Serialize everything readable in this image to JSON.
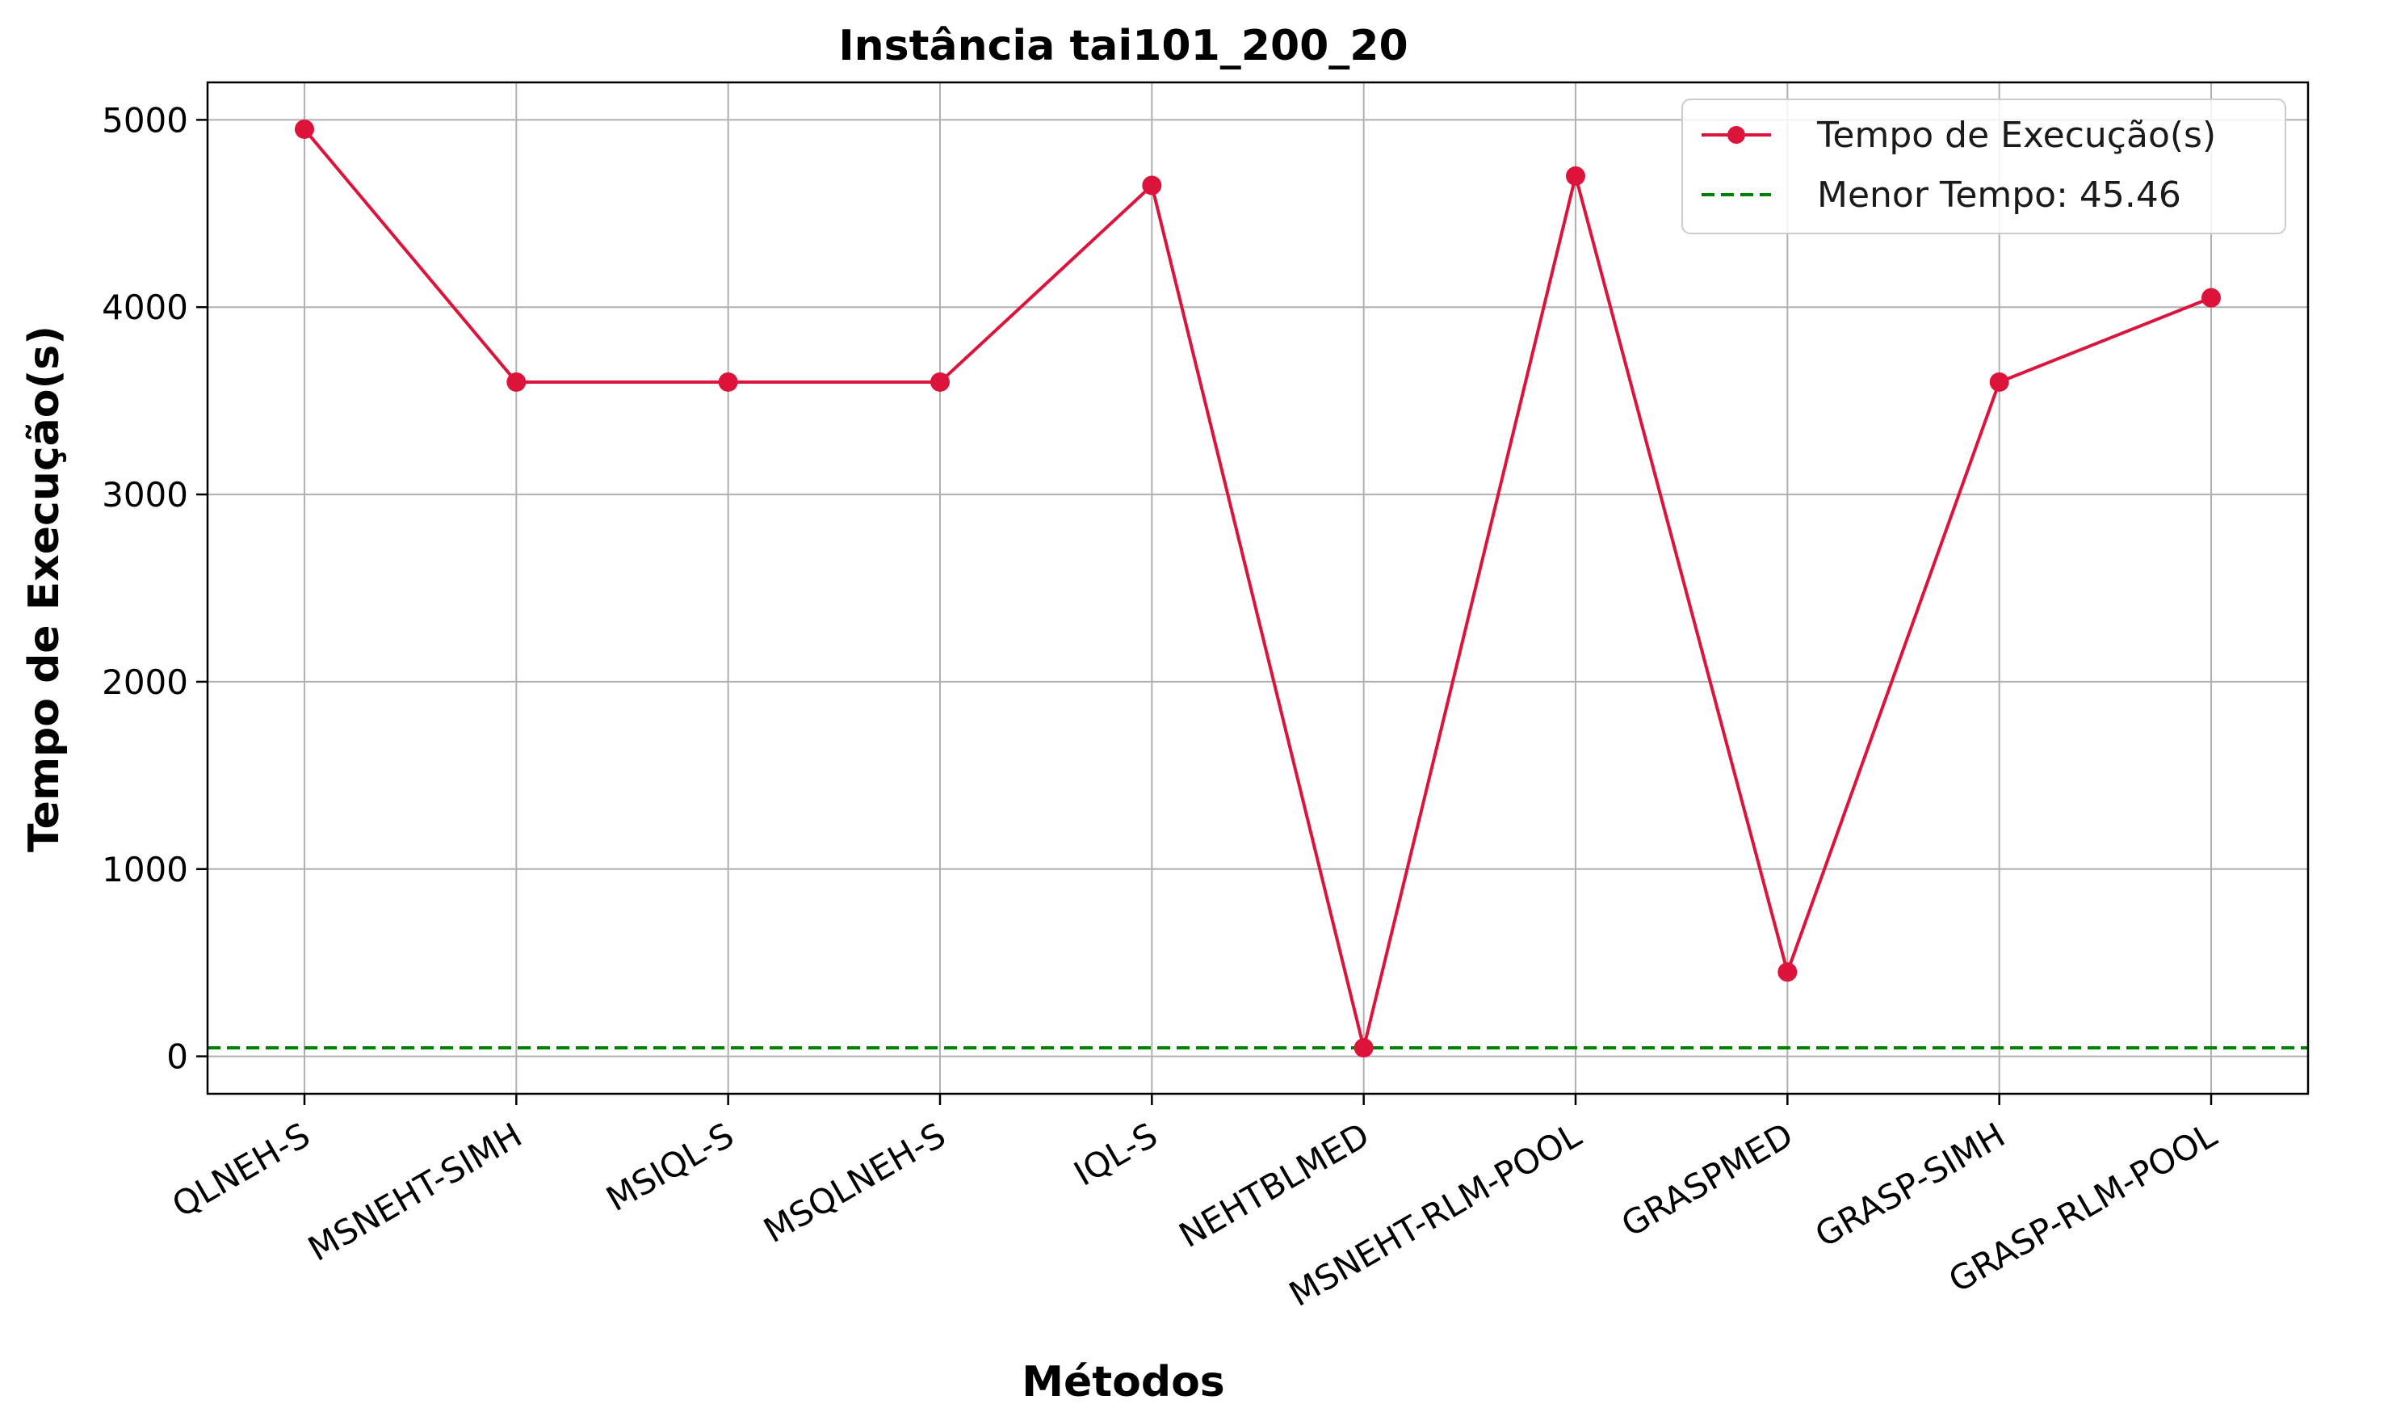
{
  "chart_data": {
    "type": "line",
    "title": "Instância tai101_200_20",
    "xlabel": "Métodos",
    "ylabel": "Tempo de Execução(s)",
    "categories": [
      "QLNEH-S",
      "MSNEHT-SIMH",
      "MSIQL-S",
      "MSQLNEH-S",
      "IQL-S",
      "NEHTBLMED",
      "MSNEHT-RLM-POOL",
      "GRASPMED",
      "GRASP-SIMH",
      "GRASP-RLM-POOL"
    ],
    "series": [
      {
        "name": "Tempo de Execução(s)",
        "color": "#dc143c",
        "values": [
          4950,
          3600,
          3600,
          3600,
          4650,
          45.46,
          4700,
          450,
          3600,
          4050
        ]
      }
    ],
    "reference_line": {
      "label": "Menor Tempo: 45.46",
      "value": 45.46,
      "color": "#008000",
      "style": "dashed"
    },
    "ylim": [
      -200,
      5200
    ],
    "yticks": [
      "0",
      "1000",
      "2000",
      "3000",
      "4000",
      "5000"
    ],
    "grid": true,
    "legend_position": "top-right",
    "xtick_rotation": 30
  }
}
